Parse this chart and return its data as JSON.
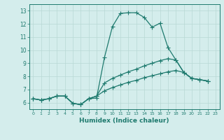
{
  "xlabel": "Humidex (Indice chaleur)",
  "background_color": "#d4edec",
  "grid_color": "#b8d8d4",
  "line_color": "#1e7a6e",
  "xlim": [
    -0.5,
    23.5
  ],
  "ylim": [
    5.5,
    13.5
  ],
  "yticks": [
    6,
    7,
    8,
    9,
    10,
    11,
    12,
    13
  ],
  "xticks": [
    0,
    1,
    2,
    3,
    4,
    5,
    6,
    7,
    8,
    9,
    10,
    11,
    12,
    13,
    14,
    15,
    16,
    17,
    18,
    19,
    20,
    21,
    22,
    23
  ],
  "series1_x": [
    0,
    1,
    2,
    3,
    4,
    5,
    6,
    7,
    8,
    9,
    10,
    11,
    12,
    13,
    14,
    15,
    16,
    17,
    18,
    19,
    20,
    21,
    22
  ],
  "series1_y": [
    6.3,
    6.2,
    6.3,
    6.5,
    6.5,
    5.95,
    5.85,
    6.3,
    6.35,
    9.45,
    11.8,
    12.8,
    12.85,
    12.85,
    12.5,
    11.75,
    12.05,
    10.2,
    9.25,
    8.3,
    7.85,
    7.75,
    7.65
  ],
  "series2_x": [
    0,
    1,
    2,
    3,
    4,
    5,
    6,
    7,
    8,
    9,
    10,
    11,
    12,
    13,
    14,
    15,
    16,
    17,
    18,
    19,
    20,
    21,
    22
  ],
  "series2_y": [
    6.3,
    6.2,
    6.3,
    6.5,
    6.5,
    5.95,
    5.85,
    6.3,
    6.5,
    7.5,
    7.85,
    8.1,
    8.35,
    8.55,
    8.8,
    9.0,
    9.2,
    9.35,
    9.25,
    8.3,
    7.85,
    7.75,
    7.65
  ],
  "series3_x": [
    0,
    1,
    2,
    3,
    4,
    5,
    6,
    7,
    8,
    9,
    10,
    11,
    12,
    13,
    14,
    15,
    16,
    17,
    18,
    19,
    20,
    21,
    22
  ],
  "series3_y": [
    6.3,
    6.2,
    6.3,
    6.5,
    6.5,
    5.95,
    5.85,
    6.3,
    6.5,
    6.9,
    7.15,
    7.35,
    7.55,
    7.7,
    7.9,
    8.05,
    8.2,
    8.35,
    8.45,
    8.3,
    7.85,
    7.75,
    7.65
  ],
  "markersize": 2.5,
  "linewidth": 0.9
}
